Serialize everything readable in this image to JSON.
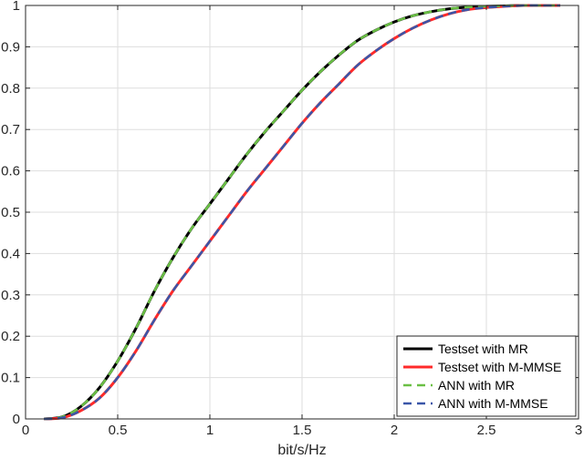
{
  "chart_data": {
    "type": "line",
    "title": "",
    "xlabel": "bit/s/Hz",
    "ylabel": "",
    "xlim": [
      0,
      3
    ],
    "ylim": [
      0,
      1
    ],
    "xticks": [
      0,
      0.5,
      1,
      1.5,
      2,
      2.5,
      3
    ],
    "xtick_labels": [
      "0",
      "0.5",
      "1",
      "1.5",
      "2",
      "2.5",
      "3"
    ],
    "yticks": [
      0,
      0.1,
      0.2,
      0.3,
      0.4,
      0.5,
      0.6,
      0.7,
      0.8,
      0.9,
      1
    ],
    "ytick_labels": [
      "0",
      "0.1",
      "0.2",
      "0.3",
      "0.4",
      "0.5",
      "0.6",
      "0.7",
      "0.8",
      "0.9",
      "1"
    ],
    "grid": true,
    "legend_position": "bottom-right",
    "x": [
      0.1,
      0.2,
      0.3,
      0.4,
      0.5,
      0.6,
      0.7,
      0.8,
      0.9,
      1.0,
      1.1,
      1.2,
      1.3,
      1.4,
      1.5,
      1.6,
      1.7,
      1.8,
      1.9,
      2.0,
      2.1,
      2.2,
      2.3,
      2.4,
      2.5,
      2.6,
      2.7,
      2.8,
      2.9
    ],
    "series": [
      {
        "name": "Testset with MR",
        "color": "#000000",
        "style": "solid",
        "values": [
          0.0,
          0.005,
          0.03,
          0.075,
          0.14,
          0.22,
          0.31,
          0.39,
          0.46,
          0.52,
          0.58,
          0.64,
          0.695,
          0.745,
          0.795,
          0.84,
          0.88,
          0.915,
          0.94,
          0.96,
          0.975,
          0.985,
          0.992,
          0.996,
          0.998,
          0.999,
          1.0,
          1.0,
          1.0
        ]
      },
      {
        "name": "Testset with M-MMSE",
        "color": "#ff2a2a",
        "style": "solid",
        "values": [
          0.0,
          0.003,
          0.02,
          0.05,
          0.1,
          0.165,
          0.24,
          0.31,
          0.37,
          0.43,
          0.49,
          0.55,
          0.605,
          0.66,
          0.715,
          0.765,
          0.81,
          0.855,
          0.89,
          0.92,
          0.945,
          0.965,
          0.98,
          0.99,
          0.995,
          0.998,
          1.0,
          1.0,
          1.0
        ]
      },
      {
        "name": "ANN with MR",
        "color": "#6abf45",
        "style": "dashed",
        "values": [
          0.0,
          0.005,
          0.03,
          0.075,
          0.14,
          0.22,
          0.31,
          0.39,
          0.46,
          0.52,
          0.58,
          0.64,
          0.695,
          0.745,
          0.795,
          0.84,
          0.88,
          0.915,
          0.94,
          0.96,
          0.975,
          0.985,
          0.992,
          0.996,
          0.998,
          0.999,
          1.0,
          1.0,
          1.0
        ]
      },
      {
        "name": "ANN with M-MMSE",
        "color": "#3a56a8",
        "style": "dashed",
        "values": [
          0.0,
          0.003,
          0.02,
          0.05,
          0.1,
          0.165,
          0.24,
          0.31,
          0.37,
          0.43,
          0.49,
          0.55,
          0.605,
          0.66,
          0.715,
          0.765,
          0.81,
          0.855,
          0.89,
          0.92,
          0.945,
          0.965,
          0.98,
          0.99,
          0.995,
          0.998,
          1.0,
          1.0,
          1.0
        ]
      }
    ]
  }
}
